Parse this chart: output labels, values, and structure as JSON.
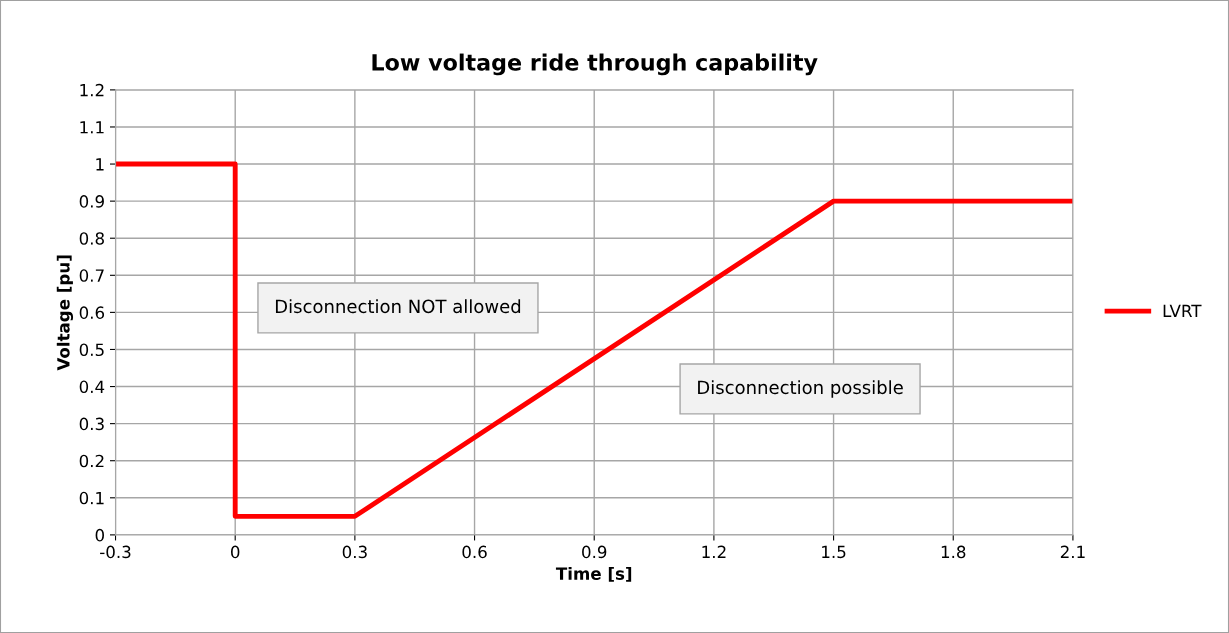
{
  "chart_data": {
    "type": "line",
    "title": "Low voltage ride through capability",
    "xlabel": "Time [s]",
    "ylabel": "Voltage [pu]",
    "x": [
      -0.3,
      0,
      0,
      0.3,
      1.5,
      2.1
    ],
    "series": [
      {
        "name": "LVRT",
        "color": "#ff0000",
        "values": [
          1,
          1,
          0.05,
          0.05,
          0.9,
          0.9
        ]
      }
    ],
    "xlim": [
      -0.3,
      2.1
    ],
    "xticks": [
      -0.3,
      0,
      0.3,
      0.6,
      0.9,
      1.2,
      1.5,
      1.8,
      2.1
    ],
    "ylim": [
      0,
      1.2
    ],
    "yticks": [
      0,
      0.1,
      0.2,
      0.3,
      0.4,
      0.5,
      0.6,
      0.7,
      0.8,
      0.9,
      1,
      1.1,
      1.2
    ],
    "annotations": [
      "Disconnection NOT allowed",
      "Disconnection possible"
    ],
    "grid": true,
    "legend": "right",
    "marker": "none",
    "line_style": "solid"
  }
}
